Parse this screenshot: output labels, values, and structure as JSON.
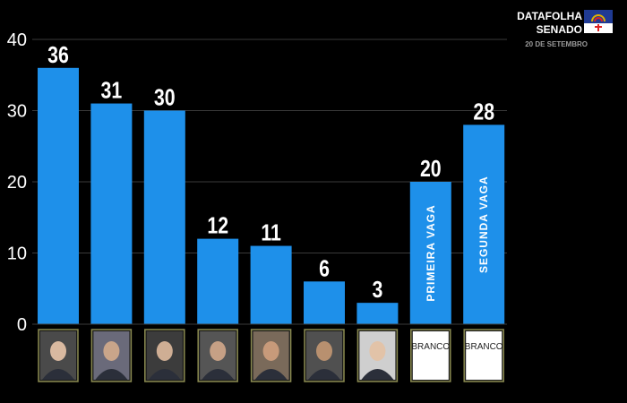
{
  "header": {
    "title_line1": "DATAFOLHA",
    "title_line2": "SENADO",
    "date": "20 DE SETEMBRO"
  },
  "chart_data": {
    "type": "bar",
    "categories": [
      "",
      "",
      "",
      "",
      "",
      "",
      "",
      "BRANCO",
      "BRANCO"
    ],
    "values": [
      36,
      31,
      30,
      12,
      11,
      6,
      3,
      20,
      28
    ],
    "bar_inner_labels": [
      "",
      "",
      "",
      "",
      "",
      "",
      "",
      "PRIMEIRA VAGA",
      "SEGUNDA VAGA"
    ],
    "title": "",
    "xlabel": "",
    "ylabel": "",
    "ylim": [
      0,
      40
    ],
    "yticks": [
      0,
      10,
      20,
      30,
      40
    ],
    "grid": true,
    "legend": "none",
    "bar_color": "#1e90ea",
    "background": "#000000"
  }
}
